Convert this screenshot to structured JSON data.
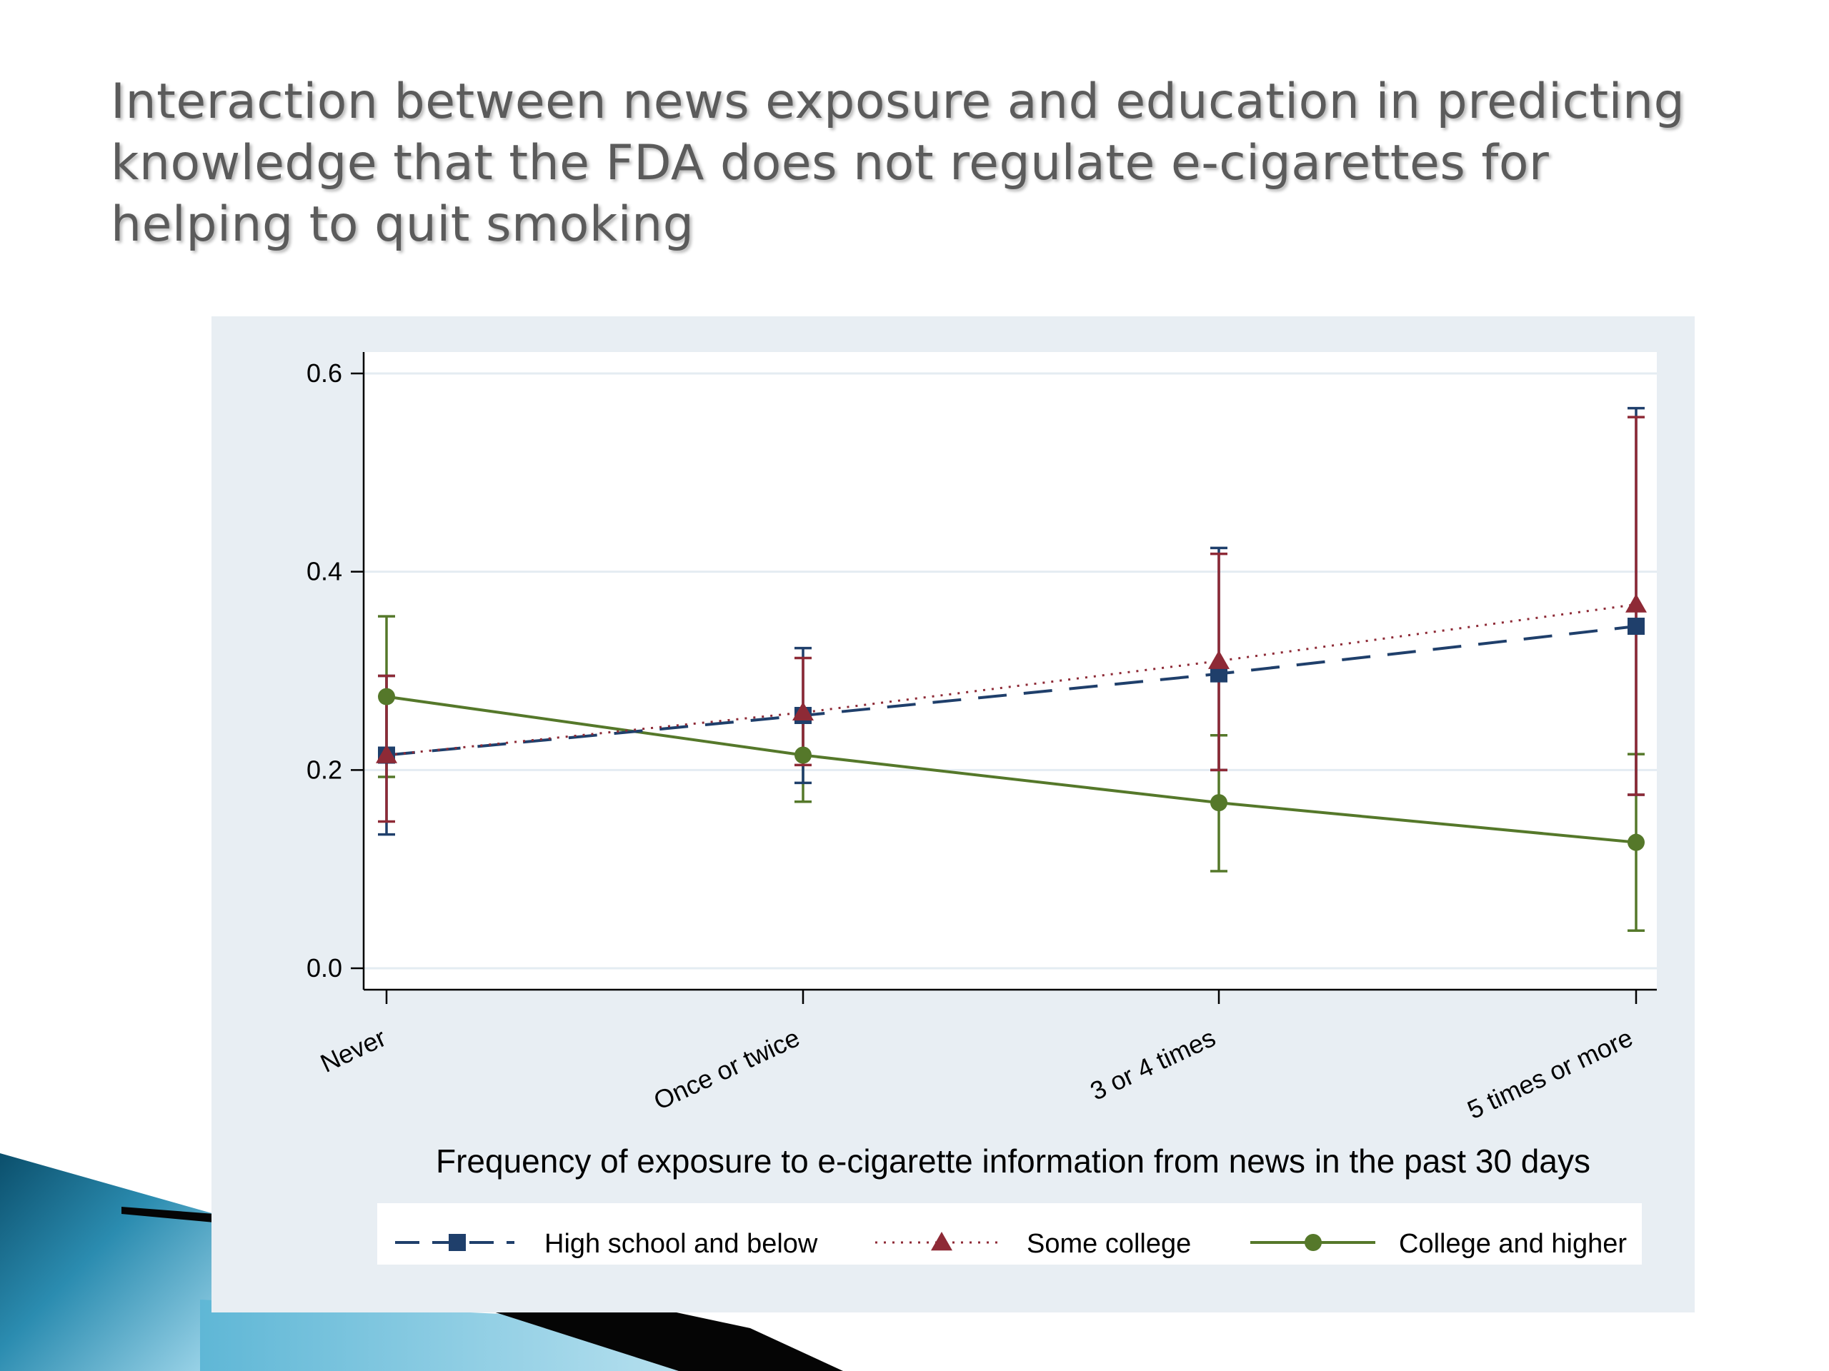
{
  "slide": {
    "title_lines": [
      "Interaction between news exposure and education in predicting",
      "knowledge that the FDA does not regulate e-cigarettes for",
      "helping to quit smoking"
    ]
  },
  "colors": {
    "high_school": "#1f3f6b",
    "some_college": "#8e2a36",
    "college_higher": "#55782a",
    "panel_bg": "#e8eef3",
    "plot_bg": "#ffffff",
    "gridline": "#e4ecf2"
  },
  "chart_data": {
    "type": "line",
    "title": "",
    "xlabel": "Frequency of exposure to e-cigarette information from news in the past 30 days",
    "ylabel": "",
    "categories": [
      "Never",
      "Once or twice",
      "3 or 4 times",
      "5 times or more"
    ],
    "ylim": [
      0,
      0.6
    ],
    "yticks": [
      0.0,
      0.2,
      0.4,
      0.6
    ],
    "ytick_labels": [
      "0.0",
      "0.2",
      "0.4",
      "0.6"
    ],
    "grid": true,
    "legend_position": "bottom",
    "series": [
      {
        "name": "High school and below",
        "marker": "square",
        "line_style": "dashed",
        "values": [
          0.215,
          0.255,
          0.297,
          0.345
        ],
        "ci_low": [
          0.135,
          0.187,
          0.2,
          0.175
        ],
        "ci_high": [
          0.295,
          0.323,
          0.424,
          0.565
        ]
      },
      {
        "name": "Some college",
        "marker": "triangle",
        "line_style": "dotted",
        "values": [
          0.215,
          0.258,
          0.31,
          0.367
        ],
        "ci_low": [
          0.148,
          0.205,
          0.2,
          0.175
        ],
        "ci_high": [
          0.295,
          0.313,
          0.418,
          0.556
        ]
      },
      {
        "name": "College and higher",
        "marker": "circle",
        "line_style": "solid",
        "values": [
          0.274,
          0.215,
          0.167,
          0.127
        ],
        "ci_low": [
          0.193,
          0.168,
          0.098,
          0.038
        ],
        "ci_high": [
          0.355,
          0.262,
          0.235,
          0.216
        ]
      }
    ]
  }
}
